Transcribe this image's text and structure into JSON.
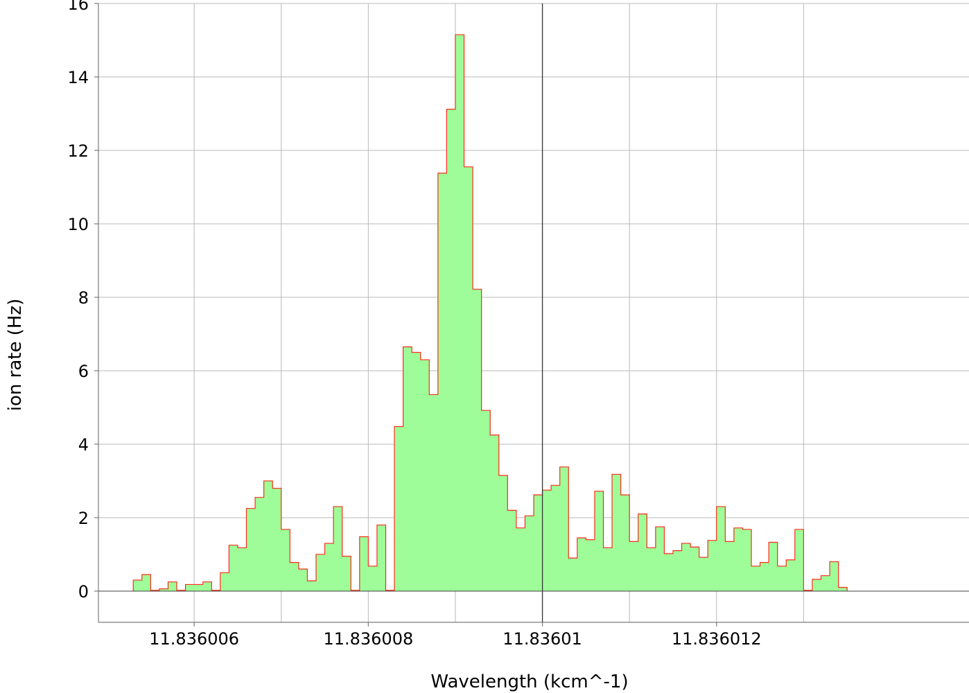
{
  "chart_data": {
    "type": "step-area",
    "xlabel": "Wavelength (kcm^-1)",
    "ylabel": "ion rate (Hz)",
    "xlim": [
      11.8360049,
      11.8360149
    ],
    "ylim": [
      -0.85,
      16
    ],
    "x_ticks": [
      {
        "value": 11.836006,
        "label": "11.836006"
      },
      {
        "value": 11.836008,
        "label": "11.836008"
      },
      {
        "value": 11.83601,
        "label": "11.83601"
      },
      {
        "value": 11.836012,
        "label": "11.836012"
      }
    ],
    "x_minor_gridlines": [
      11.836007,
      11.836009,
      11.836011,
      11.836013
    ],
    "y_ticks": [
      0,
      2,
      4,
      6,
      8,
      10,
      12,
      14,
      16
    ],
    "marker_line_x": 11.83601,
    "grid": true,
    "fill_color": "#9efd98",
    "line_color": "#ff2a1a",
    "bins": {
      "x_start": 11.8360053,
      "bin_width": 1e-07,
      "values": [
        0.3,
        0.45,
        0.02,
        0.06,
        0.25,
        0.02,
        0.18,
        0.18,
        0.25,
        0.02,
        0.5,
        1.25,
        1.18,
        2.25,
        2.55,
        3.0,
        2.8,
        1.68,
        0.78,
        0.6,
        0.28,
        1.0,
        1.3,
        2.3,
        0.95,
        0.02,
        1.48,
        0.68,
        1.8,
        0.02,
        4.48,
        6.65,
        6.5,
        6.3,
        5.35,
        11.38,
        13.12,
        15.15,
        11.55,
        8.22,
        4.92,
        4.25,
        3.15,
        2.2,
        1.72,
        2.05,
        2.62,
        2.75,
        2.88,
        3.38,
        0.9,
        1.45,
        1.4,
        2.72,
        1.18,
        3.18,
        2.62,
        1.35,
        2.1,
        1.18,
        1.75,
        1.02,
        1.1,
        1.3,
        1.2,
        0.92,
        1.38,
        2.3,
        1.35,
        1.72,
        1.68,
        0.68,
        0.78,
        1.33,
        0.68,
        0.85,
        1.68,
        0.02,
        0.32,
        0.42,
        0.8,
        0.1
      ]
    }
  }
}
